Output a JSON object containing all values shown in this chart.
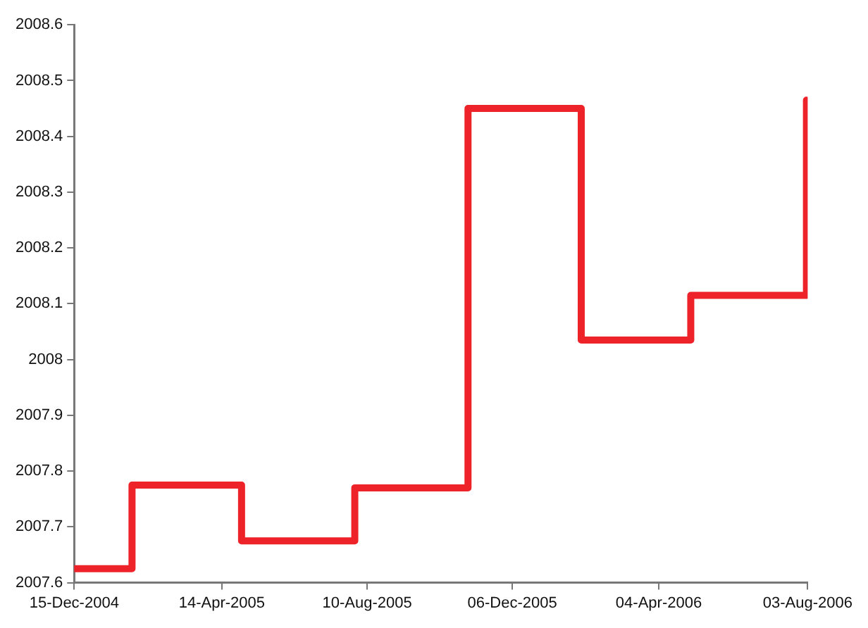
{
  "chart_data": {
    "type": "step",
    "x": [
      "2004-12-15",
      "2005-01-31",
      "2005-04-30",
      "2005-07-31",
      "2005-10-31",
      "2006-01-31",
      "2006-04-30",
      "2006-08-02"
    ],
    "series": [
      {
        "color": "#ee2229",
        "values": [
          2007.625,
          2007.775,
          2007.675,
          2007.77,
          2008.45,
          2008.035,
          2008.115,
          2008.465
        ]
      }
    ],
    "xlim": [
      "2004-12-15",
      "2006-08-03"
    ],
    "xticks": [
      {
        "value": "2004-12-15",
        "label": "15-Dec-2004"
      },
      {
        "value": "2005-04-14",
        "label": "14-Apr-2005"
      },
      {
        "value": "2005-08-10",
        "label": "10-Aug-2005"
      },
      {
        "value": "2005-12-06",
        "label": "06-Dec-2005"
      },
      {
        "value": "2006-04-04",
        "label": "04-Apr-2006"
      },
      {
        "value": "2006-08-03",
        "label": "03-Aug-2006"
      }
    ],
    "ylim": [
      2007.6,
      2008.6
    ],
    "yticks": [
      2007.6,
      2007.7,
      2007.8,
      2007.9,
      2008,
      2008.1,
      2008.2,
      2008.3,
      2008.4,
      2008.5,
      2008.6
    ],
    "grid": false,
    "legend": false,
    "marker": "none",
    "line_style": "solid"
  }
}
